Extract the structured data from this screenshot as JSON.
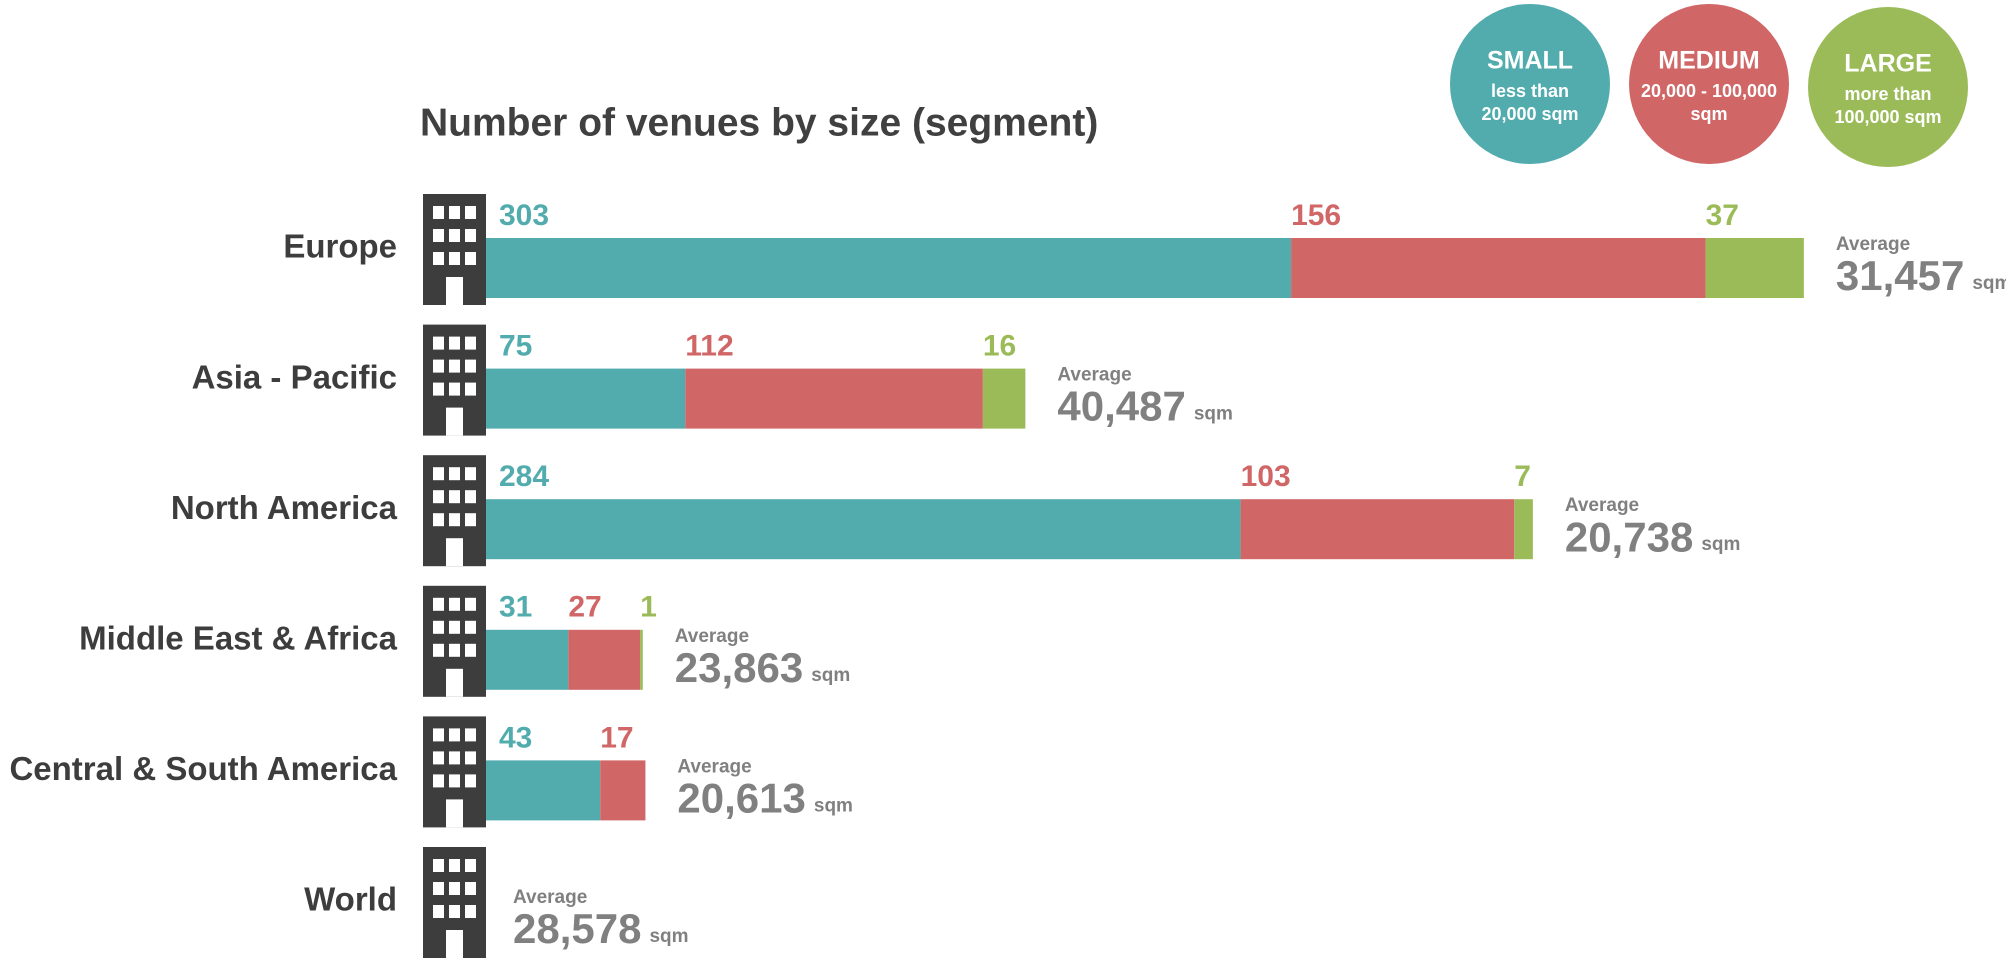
{
  "chart_data": {
    "type": "bar",
    "orientation": "horizontal",
    "stacked": true,
    "title": "Number of venues by size (segment)",
    "categories": [
      "Europe",
      "Asia - Pacific",
      "North America",
      "Middle East & Africa",
      "Central & South America",
      "World"
    ],
    "series": [
      {
        "name": "SMALL",
        "description": [
          "less than",
          "20,000 sqm"
        ],
        "color": "#52abad",
        "values": [
          303,
          75,
          284,
          31,
          43,
          null
        ]
      },
      {
        "name": "MEDIUM",
        "description": [
          "20,000 - 100,000",
          "sqm"
        ],
        "color": "#d06666",
        "values": [
          156,
          112,
          103,
          27,
          17,
          null
        ]
      },
      {
        "name": "LARGE",
        "description": [
          "more than",
          "100,000 sqm"
        ],
        "color": "#9bbb59",
        "values": [
          37,
          16,
          7,
          1,
          null,
          null
        ]
      }
    ],
    "averages": {
      "name": "Average",
      "unit": "sqm",
      "values": [
        31457,
        40487,
        20738,
        23863,
        20613,
        28578
      ],
      "value_labels": [
        "31,457",
        "40,487",
        "20,738",
        "23,863",
        "20,613",
        "28,578"
      ]
    }
  }
}
